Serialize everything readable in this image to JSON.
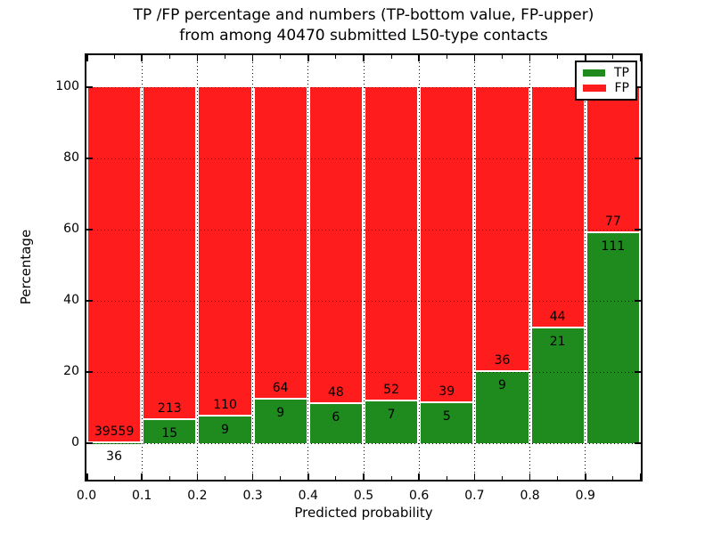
{
  "titles": {
    "line1": "TP /FP percentage and numbers (TP-bottom value, FP-upper)",
    "line2": "from among 40470 submitted L50-type contacts"
  },
  "chart_data": {
    "type": "bar",
    "subtype": "stacked-percentage",
    "title": "TP /FP percentage and numbers (TP-bottom value, FP-upper)\nfrom among 40470 submitted L50-type contacts",
    "xlabel": "Predicted probability",
    "ylabel": "Percentage",
    "total_contacts": 40470,
    "bin_edges": [
      0.0,
      0.1,
      0.2,
      0.3,
      0.4,
      0.5,
      0.6,
      0.7,
      0.8,
      0.9,
      1.0
    ],
    "x_tick_labels": [
      "0.0",
      "0.1",
      "0.2",
      "0.3",
      "0.4",
      "0.5",
      "0.6",
      "0.7",
      "0.8",
      "0.9"
    ],
    "y_ticks": [
      0,
      20,
      40,
      60,
      80,
      100
    ],
    "xlim": [
      0.0,
      1.0
    ],
    "ylim": [
      -10.25,
      109.0
    ],
    "grid": true,
    "grid_style": "dotted",
    "legend_position": "upper right",
    "series": [
      {
        "name": "TP",
        "color": "#1f8b1f",
        "counts": [
          36,
          15,
          9,
          9,
          6,
          7,
          5,
          9,
          21,
          111
        ]
      },
      {
        "name": "FP",
        "color": "#ff1c1c",
        "counts": [
          39559,
          213,
          110,
          64,
          48,
          52,
          39,
          36,
          44,
          77
        ]
      }
    ],
    "tp_percent_per_bin": [
      0.09,
      6.58,
      7.56,
      12.33,
      11.11,
      11.86,
      11.36,
      20.0,
      32.31,
      59.04
    ]
  },
  "colors": {
    "tp_green": "#1f8b1f",
    "fp_red": "#ff1c1c",
    "grid": "#000000",
    "frame": "#000000",
    "background": "#ffffff",
    "text": "#000000",
    "bar_edge": "#ffffff"
  }
}
